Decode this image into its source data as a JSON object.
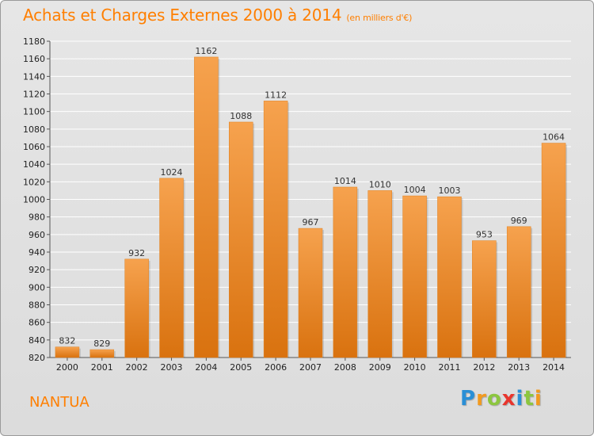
{
  "header": {
    "title": "Achats et Charges Externes 2000 à 2014",
    "unit": "(en milliers d'€)"
  },
  "footer": {
    "commune": "NANTUA",
    "logo_letters": [
      "P",
      "r",
      "o",
      "x",
      "i",
      "t",
      "i"
    ],
    "logo_colors": [
      "#2a8fd6",
      "#f29a1f",
      "#8cc63f",
      "#e8352d",
      "#2a8fd6",
      "#8cc63f",
      "#f29a1f"
    ]
  },
  "chart_data": {
    "type": "bar",
    "categories": [
      "2000",
      "2001",
      "2002",
      "2003",
      "2004",
      "2005",
      "2006",
      "2007",
      "2008",
      "2009",
      "2010",
      "2011",
      "2012",
      "2013",
      "2014"
    ],
    "values": [
      832,
      829,
      932,
      1024,
      1162,
      1088,
      1112,
      967,
      1014,
      1010,
      1004,
      1003,
      953,
      969,
      1064
    ],
    "ylim": [
      820,
      1180
    ],
    "yticks": [
      820,
      840,
      860,
      880,
      900,
      920,
      940,
      960,
      980,
      1000,
      1020,
      1040,
      1060,
      1080,
      1100,
      1120,
      1140,
      1160,
      1180
    ],
    "grid": true,
    "bar_color_light": "#f6a24e",
    "bar_color_dark": "#d9720f",
    "title_color": "#ff7f00"
  }
}
